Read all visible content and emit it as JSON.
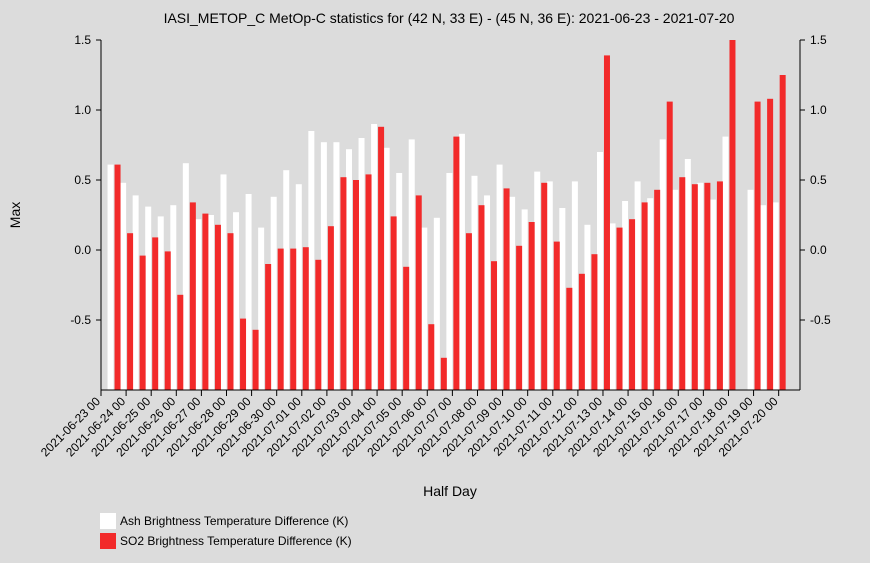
{
  "chart_data": {
    "type": "bar",
    "title": "IASI_METOP_C MetOp-C statistics for (42 N, 33 E) - (45 N, 36 E): 2021-06-23 - 2021-07-20",
    "xlabel": "Half Day",
    "ylabel": "Max",
    "ylim": [
      -1.0,
      1.5
    ],
    "yticks": [
      1.5,
      1.0,
      0.5,
      0.0,
      -0.5
    ],
    "ytick_labels": [
      "1.5",
      "1.0",
      "0.5",
      "0.0",
      "-0.5"
    ],
    "xlim": [
      0,
      55.7
    ],
    "xtick_labels": [
      "2021-06-23 00",
      "2021-06-24 00",
      "2021-06-25 00",
      "2021-06-26 00",
      "2021-06-27 00",
      "2021-06-28 00",
      "2021-06-29 00",
      "2021-06-30 00",
      "2021-07-01 00",
      "2021-07-02 00",
      "2021-07-03 00",
      "2021-07-04 00",
      "2021-07-05 00",
      "2021-07-06 00",
      "2021-07-07 00",
      "2021-07-08 00",
      "2021-07-09 00",
      "2021-07-10 00",
      "2021-07-11 00",
      "2021-07-12 00",
      "2021-07-13 00",
      "2021-07-14 00",
      "2021-07-15 00",
      "2021-07-16 00",
      "2021-07-17 00",
      "2021-07-18 00",
      "2021-07-19 00",
      "2021-07-20 00"
    ],
    "grid": false,
    "legend_position": "bottom-left",
    "series": [
      {
        "name": "Ash Brightness Temperature Difference (K)",
        "color": "#ffffff",
        "values": [
          null,
          0.61,
          0.48,
          0.39,
          0.31,
          0.24,
          0.32,
          0.62,
          0.22,
          0.25,
          0.54,
          0.27,
          0.4,
          0.16,
          0.38,
          0.57,
          0.47,
          0.85,
          0.77,
          0.77,
          0.72,
          0.8,
          0.9,
          0.73,
          0.55,
          0.79,
          0.16,
          0.23,
          0.55,
          0.83,
          0.53,
          0.39,
          0.61,
          0.38,
          0.29,
          0.56,
          0.49,
          0.3,
          0.49,
          0.18,
          0.7,
          0.19,
          0.35,
          0.49,
          0.37,
          0.79,
          0.43,
          0.65,
          0.48,
          0.36,
          0.81,
          null,
          0.43,
          0.32,
          0.34
        ]
      },
      {
        "name": "SO2 Brightness Temperature Difference (K)",
        "color": "#f22a2a",
        "values": [
          null,
          0.61,
          0.12,
          -0.04,
          0.09,
          -0.01,
          -0.32,
          0.34,
          0.26,
          0.18,
          0.12,
          -0.49,
          -0.57,
          -0.1,
          0.01,
          0.01,
          0.02,
          -0.07,
          0.17,
          0.52,
          0.5,
          0.54,
          0.88,
          0.24,
          -0.12,
          0.39,
          -0.53,
          -0.77,
          0.81,
          0.12,
          0.32,
          -0.08,
          0.44,
          0.03,
          0.2,
          0.48,
          0.06,
          -0.27,
          -0.17,
          -0.03,
          1.39,
          0.16,
          0.22,
          0.34,
          0.43,
          1.06,
          0.52,
          0.47,
          0.48,
          0.49,
          1.5,
          null,
          1.06,
          1.08,
          1.25
        ]
      }
    ]
  }
}
